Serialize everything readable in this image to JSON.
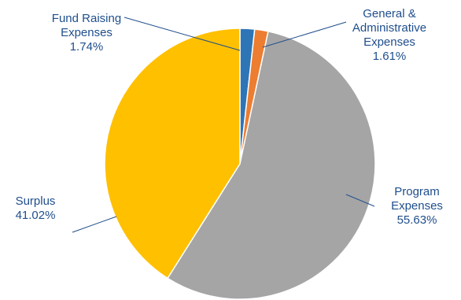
{
  "chart_data": {
    "type": "pie",
    "slices": [
      {
        "label": "Fund Raising Expenses",
        "label_lines": [
          "Fund Raising",
          "Expenses"
        ],
        "percent_text": "1.74%",
        "value": 1.74,
        "color": "#2e75b6"
      },
      {
        "label": "General & Administrative Expenses",
        "label_lines": [
          "General &",
          "Administrative",
          "Expenses"
        ],
        "percent_text": "1.61%",
        "value": 1.61,
        "color": "#ed7d31"
      },
      {
        "label": "Program Expenses",
        "label_lines": [
          "Program",
          "Expenses"
        ],
        "percent_text": "55.63%",
        "value": 55.63,
        "color": "#a5a5a5"
      },
      {
        "label": "Surplus",
        "label_lines": [
          "Surplus"
        ],
        "percent_text": "41.02%",
        "value": 41.02,
        "color": "#ffc000"
      }
    ]
  }
}
